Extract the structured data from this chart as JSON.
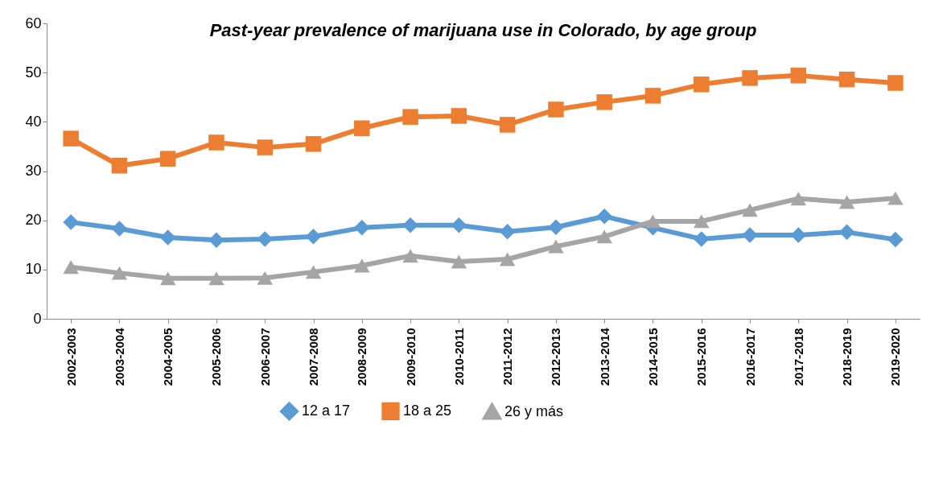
{
  "chart_data": {
    "type": "line",
    "title": "Past-year prevalence of marijuana use in Colorado, by age group",
    "categories": [
      "2002-2003",
      "2003-2004",
      "2004-2005",
      "2005-2006",
      "2006-2007",
      "2007-2008",
      "2008-2009",
      "2009-2010",
      "2010-2011",
      "2011-2012",
      "2012-2013",
      "2013-2014",
      "2014-2015",
      "2015-2016",
      "2016-2017",
      "2017-2018",
      "2018-2019",
      "2019-2020"
    ],
    "series": [
      {
        "name": "12 a 17",
        "color": "#5b9bd5",
        "marker": "diamond",
        "values": [
          19.6,
          18.3,
          16.5,
          16.0,
          16.2,
          16.7,
          18.5,
          19.0,
          19.0,
          17.7,
          18.6,
          20.8,
          18.5,
          16.2,
          17.0,
          17.0,
          17.6,
          16.1
        ]
      },
      {
        "name": "18 a 25",
        "color": "#ed7d31",
        "marker": "square",
        "values": [
          36.6,
          31.1,
          32.5,
          35.8,
          34.8,
          35.5,
          38.7,
          41.0,
          41.2,
          39.4,
          42.5,
          44.0,
          45.3,
          47.6,
          48.9,
          49.4,
          48.6,
          47.9
        ]
      },
      {
        "name": "26 y más",
        "color": "#a5a5a5",
        "marker": "triangle",
        "values": [
          10.5,
          9.3,
          8.2,
          8.2,
          8.3,
          9.5,
          10.8,
          12.8,
          11.6,
          12.1,
          14.7,
          16.7,
          19.8,
          19.8,
          22.1,
          24.4,
          23.7,
          24.5
        ]
      }
    ],
    "ylim": [
      0,
      60
    ],
    "yticks": [
      0,
      10,
      20,
      30,
      40,
      50,
      60
    ],
    "grid": false,
    "legend": "bottom",
    "line_style": "solid"
  }
}
